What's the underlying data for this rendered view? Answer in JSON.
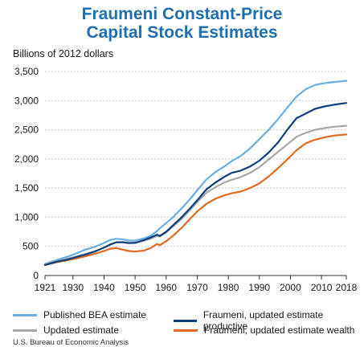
{
  "chart_data": {
    "type": "line",
    "title": [
      "Fraumeni Constant-Price",
      "Capital Stock Estimates"
    ],
    "ylabel": "Billions of 2012 dollars",
    "xlabel": "",
    "xlim": [
      1921,
      2018
    ],
    "ylim": [
      0,
      3500
    ],
    "x_ticks": [
      "1921",
      "1930",
      "1940",
      "1950",
      "1960",
      "1970",
      "1980",
      "1990",
      "2000",
      "2010",
      "2018"
    ],
    "y_ticks": [
      "0",
      "500",
      "1,000",
      "1,500",
      "2,000",
      "2,500",
      "3,000",
      "3,500"
    ],
    "grid": "horizontal dashed",
    "legend_placement": "bottom",
    "x": [
      1921,
      1925,
      1928,
      1930,
      1932,
      1934,
      1937,
      1940,
      1942,
      1944,
      1946,
      1948,
      1950,
      1953,
      1955,
      1957,
      1958,
      1960,
      1962,
      1965,
      1968,
      1970,
      1973,
      1976,
      1979,
      1981,
      1984,
      1987,
      1990,
      1993,
      1996,
      1999,
      2002,
      2005,
      2008,
      2011,
      2014,
      2018
    ],
    "series": [
      {
        "name": "Published BEA estimate",
        "color": "#6aaee2",
        "values": [
          200,
          270,
          320,
          355,
          400,
          445,
          490,
          560,
          610,
          630,
          620,
          600,
          600,
          640,
          680,
          760,
          810,
          900,
          990,
          1150,
          1330,
          1460,
          1650,
          1780,
          1880,
          1960,
          2050,
          2180,
          2340,
          2500,
          2680,
          2880,
          3070,
          3200,
          3270,
          3300,
          3320,
          3340
        ]
      },
      {
        "name": "Fraumeni, updated estimate productive",
        "color": "#0d3f7c",
        "values": [
          180,
          240,
          270,
          300,
          330,
          360,
          410,
          480,
          530,
          570,
          570,
          555,
          560,
          610,
          650,
          700,
          680,
          750,
          850,
          1000,
          1170,
          1290,
          1480,
          1600,
          1700,
          1760,
          1800,
          1870,
          1970,
          2110,
          2280,
          2500,
          2700,
          2780,
          2860,
          2900,
          2930,
          2960
        ]
      },
      {
        "name": "Updated estimate",
        "color": "#a7a8aa",
        "values": [
          190,
          250,
          285,
          310,
          340,
          370,
          415,
          480,
          535,
          570,
          575,
          565,
          565,
          600,
          630,
          680,
          670,
          740,
          830,
          970,
          1140,
          1260,
          1420,
          1520,
          1600,
          1640,
          1690,
          1760,
          1860,
          1990,
          2120,
          2250,
          2380,
          2450,
          2500,
          2530,
          2550,
          2570
        ]
      },
      {
        "name": "Fraumeni, updated estimate wealth",
        "color": "#e06a22",
        "values": [
          180,
          230,
          260,
          280,
          305,
          330,
          370,
          420,
          460,
          470,
          445,
          420,
          410,
          430,
          470,
          540,
          520,
          590,
          670,
          820,
          990,
          1100,
          1230,
          1320,
          1380,
          1410,
          1440,
          1500,
          1580,
          1700,
          1840,
          1990,
          2150,
          2270,
          2330,
          2370,
          2400,
          2420
        ]
      }
    ]
  },
  "source": "U.S. Bureau of Economic Analysis"
}
